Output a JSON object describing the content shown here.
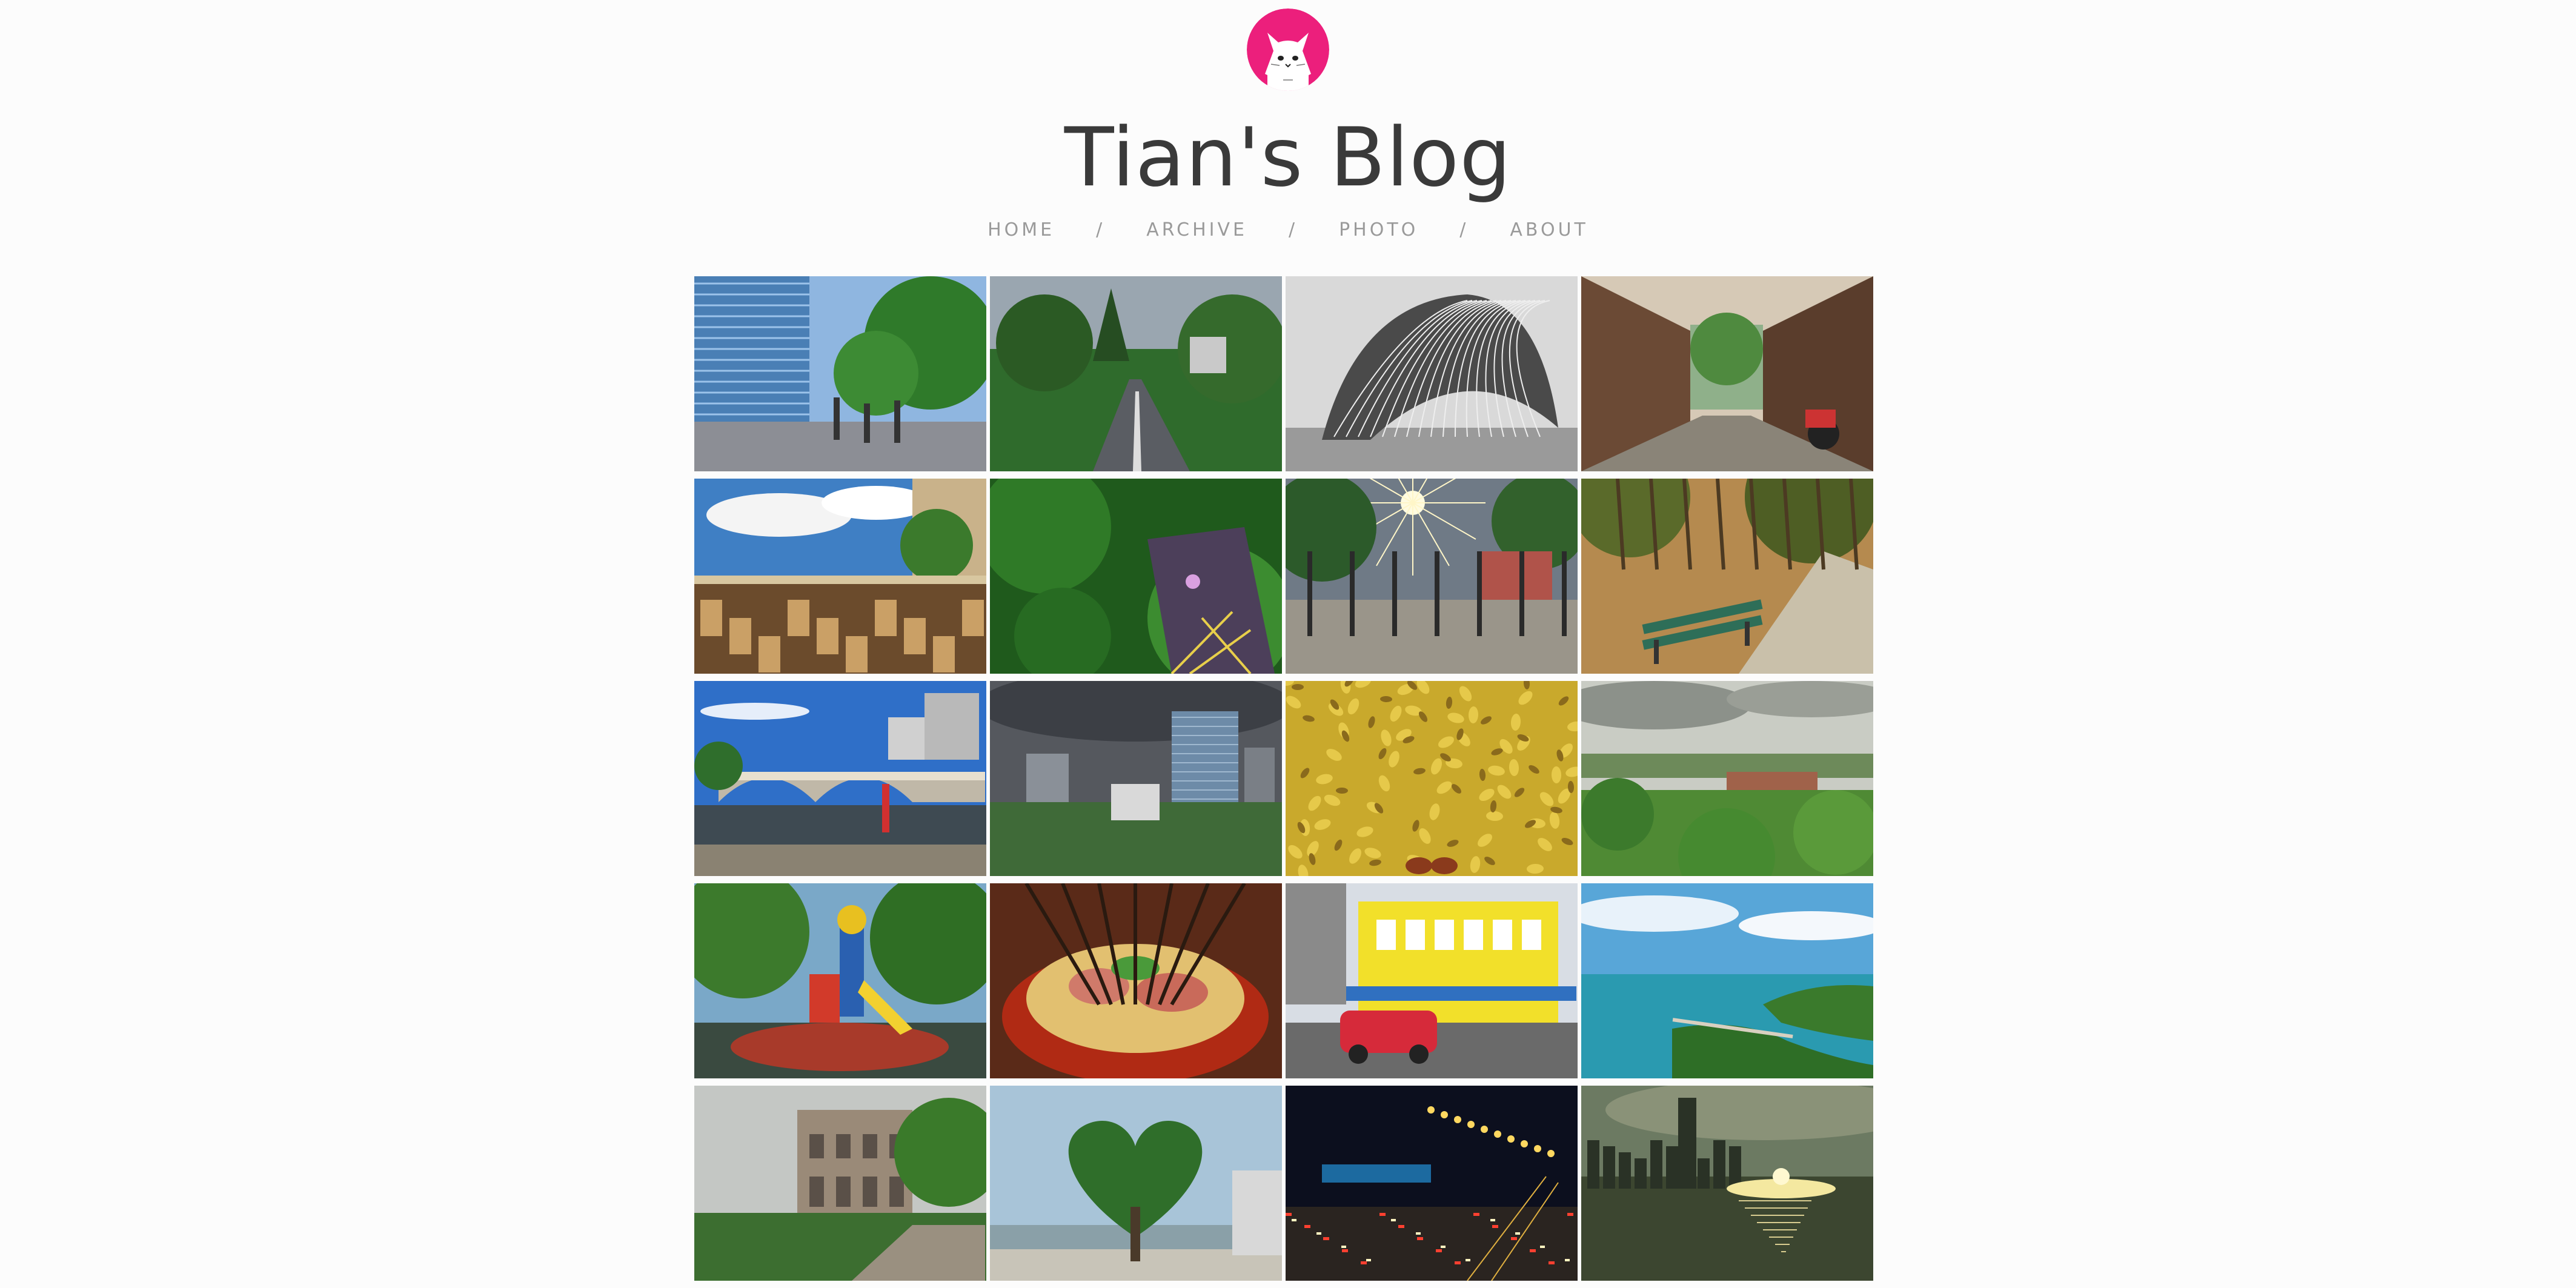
{
  "header": {
    "title": "Tian's Blog",
    "avatar_icon": "cat-face-icon",
    "avatar_color": "#ec1f7c"
  },
  "nav": {
    "items": [
      {
        "label": "HOME"
      },
      {
        "label": "ARCHIVE"
      },
      {
        "label": "PHOTO"
      },
      {
        "label": "ABOUT"
      }
    ],
    "separator": "/"
  },
  "photos": [
    {
      "name": "photo-office-street",
      "scene": "city-trees"
    },
    {
      "name": "photo-campus-road",
      "scene": "road-forest"
    },
    {
      "name": "photo-shell-sculpture",
      "scene": "bw-sculpture"
    },
    {
      "name": "photo-old-alley",
      "scene": "alley"
    },
    {
      "name": "photo-outdoor-cafe",
      "scene": "cafe"
    },
    {
      "name": "photo-aerial-trees",
      "scene": "aerial-green"
    },
    {
      "name": "photo-sunburst-avenue",
      "scene": "sun-avenue"
    },
    {
      "name": "photo-park-bench",
      "scene": "bench"
    },
    {
      "name": "photo-river-bridge",
      "scene": "bridge"
    },
    {
      "name": "photo-stormy-city",
      "scene": "storm-city"
    },
    {
      "name": "photo-ginkgo-leaves",
      "scene": "leaves"
    },
    {
      "name": "photo-hill-view",
      "scene": "hill"
    },
    {
      "name": "photo-playground",
      "scene": "playground"
    },
    {
      "name": "photo-hotpot",
      "scene": "hotpot"
    },
    {
      "name": "photo-yellow-building",
      "scene": "yellow-house"
    },
    {
      "name": "photo-coast-island",
      "scene": "coast"
    },
    {
      "name": "photo-ruins-facade",
      "scene": "ruins"
    },
    {
      "name": "photo-heart-tree",
      "scene": "heart-tree"
    },
    {
      "name": "photo-night-traffic",
      "scene": "night-road"
    },
    {
      "name": "photo-harbour-sunset",
      "scene": "harbour"
    }
  ]
}
